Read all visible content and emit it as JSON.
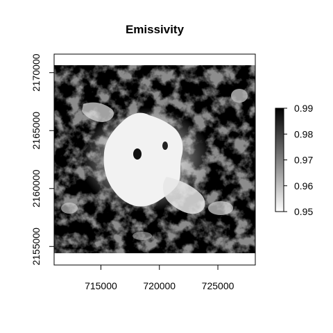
{
  "chart_data": {
    "type": "heatmap",
    "title": "Emissivity",
    "xlabel": "",
    "ylabel": "",
    "xlim": [
      711000,
      728200
    ],
    "ylim": [
      2153400,
      2171600
    ],
    "extent": {
      "xmin": 711000,
      "xmax": 728200,
      "ymin": 2154400,
      "ymax": 2170400
    },
    "x_ticks": [
      {
        "value": 715000,
        "label": "715000"
      },
      {
        "value": 720000,
        "label": "720000"
      },
      {
        "value": 725000,
        "label": "725000"
      }
    ],
    "y_ticks": [
      {
        "value": 2155000,
        "label": "2155000"
      },
      {
        "value": 2160000,
        "label": "2160000"
      },
      {
        "value": 2165000,
        "label": "2165000"
      },
      {
        "value": 2170000,
        "label": "2170000"
      }
    ],
    "colorbar": {
      "min": 0.95,
      "max": 0.99,
      "ticks": [
        {
          "value": 0.99,
          "label": "0.99"
        },
        {
          "value": 0.98,
          "label": "0.98"
        },
        {
          "value": 0.97,
          "label": "0.97"
        },
        {
          "value": 0.96,
          "label": "0.96"
        },
        {
          "value": 0.95,
          "label": "0.95"
        }
      ],
      "low_color": "#ffffff",
      "high_color": "#000000"
    },
    "grid": false,
    "legend": "right"
  }
}
